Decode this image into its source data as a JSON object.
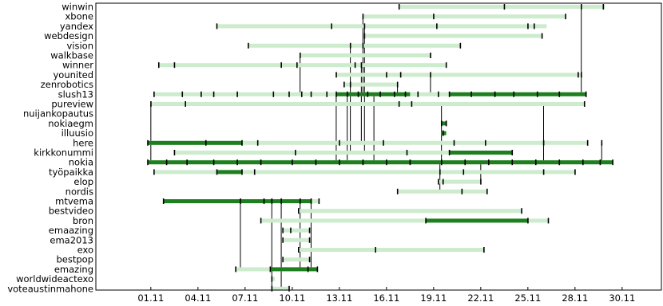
{
  "chart_data": {
    "type": "timeline",
    "title": "",
    "xlabel": "",
    "ylabel": "",
    "x_ticks": [
      "01.11",
      "04.11",
      "07.11",
      "10.11",
      "13.11",
      "16.11",
      "19.11",
      "22.11",
      "25.11",
      "28.11",
      "30.11"
    ],
    "x_tick_days": [
      1,
      4,
      7,
      10,
      13,
      16,
      19,
      22,
      25,
      28,
      31
    ],
    "xlim_days": [
      -2.5,
      33.5
    ],
    "colors": {
      "span": "#cdebcd",
      "active": "#1e7f1e",
      "event": "#000000",
      "link": "#000000"
    },
    "rows": [
      {
        "label": "winwin",
        "span": [
          16.8,
          29.9
        ],
        "active": [],
        "events": [
          16.8,
          23.5,
          28.4,
          29.8
        ]
      },
      {
        "label": "xbone",
        "span": [
          14.5,
          27.4
        ],
        "active": [],
        "events": [
          14.5,
          19.0,
          27.4
        ]
      },
      {
        "label": "yandex",
        "span": [
          5.2,
          26.2
        ],
        "active": [],
        "events": [
          5.2,
          12.5,
          14.6,
          19.2,
          25.0,
          25.4
        ]
      },
      {
        "label": "webdesign",
        "span": [
          14.6,
          25.9
        ],
        "active": [],
        "events": [
          14.6,
          25.9
        ]
      },
      {
        "label": "vision",
        "span": [
          7.2,
          20.7
        ],
        "active": [],
        "events": [
          7.2,
          13.7,
          14.5,
          20.7
        ]
      },
      {
        "label": "walkbase",
        "span": [
          10.5,
          18.8
        ],
        "active": [],
        "events": [
          10.5,
          18.8
        ]
      },
      {
        "label": "winner",
        "span": [
          1.5,
          19.8
        ],
        "active": [],
        "events": [
          1.5,
          2.5,
          9.3,
          10.3,
          14.0,
          14.4,
          19.8
        ]
      },
      {
        "label": "younited",
        "span": [
          12.8,
          28.4
        ],
        "active": [],
        "events": [
          12.8,
          16.0,
          16.9,
          18.8,
          28.2,
          28.4
        ]
      },
      {
        "label": "zenrobotics",
        "span": [
          13.3,
          16.7
        ],
        "active": [],
        "events": [
          13.3,
          13.7,
          16.7
        ]
      },
      {
        "label": "slush13",
        "span": [
          1.2,
          28.7
        ],
        "active": [
          [
            12.8,
            17.5
          ],
          [
            20.0,
            28.7
          ]
        ],
        "events": [
          1.2,
          3.0,
          4.2,
          5.0,
          6.5,
          8.8,
          9.8,
          10.6,
          11.2,
          12.2,
          12.8,
          13.5,
          14.2,
          14.8,
          15.6,
          16.5,
          17.2,
          18.0,
          19.3,
          20.0,
          21.4,
          22.9,
          24.1,
          25.6,
          27.0,
          28.7
        ]
      },
      {
        "label": "pureview",
        "span": [
          1.0,
          28.6
        ],
        "active": [],
        "events": [
          1.0,
          3.2,
          16.8,
          17.6,
          28.6
        ]
      },
      {
        "label": "nuijankopautus",
        "span": [],
        "active": [],
        "events": []
      },
      {
        "label": "nokiaegm",
        "span": [
          19.5,
          19.8
        ],
        "active": [
          [
            19.5,
            19.8
          ]
        ],
        "events": [
          19.5,
          19.8
        ]
      },
      {
        "label": "illuusio",
        "span": [
          19.5,
          19.8
        ],
        "active": [
          [
            19.5,
            19.8
          ]
        ],
        "events": [
          19.6
        ]
      },
      {
        "label": "here",
        "span": [
          0.8,
          28.8
        ],
        "active": [
          [
            0.8,
            6.8
          ]
        ],
        "events": [
          0.8,
          4.5,
          6.8,
          7.8,
          13.0,
          15.8,
          20.3,
          22.3,
          26.0,
          28.8,
          29.7
        ]
      },
      {
        "label": "kirkkonummi",
        "span": [
          2.5,
          24.0
        ],
        "active": [
          [
            20.0,
            24.0
          ]
        ],
        "events": [
          2.5,
          10.2,
          17.3,
          20.0,
          24.0
        ]
      },
      {
        "label": "nokia",
        "span": [
          0.8,
          30.4
        ],
        "active": [
          [
            0.8,
            30.4
          ]
        ],
        "events": [
          0.8,
          2.0,
          3.3,
          5.0,
          6.5,
          8.0,
          10.0,
          11.5,
          13.0,
          14.5,
          16.0,
          17.5,
          19.5,
          21.0,
          22.5,
          24.0,
          25.5,
          27.0,
          28.5,
          29.6,
          30.4
        ]
      },
      {
        "label": "työpaikka",
        "span": [
          1.2,
          28.0
        ],
        "active": [
          [
            5.2,
            6.8
          ]
        ],
        "events": [
          1.2,
          5.2,
          6.8,
          7.6,
          19.4,
          20.9,
          26.0,
          28.0
        ]
      },
      {
        "label": "elop",
        "span": [
          19.3,
          22.0
        ],
        "active": [],
        "events": [
          19.3,
          19.6,
          22.0
        ]
      },
      {
        "label": "nordis",
        "span": [
          16.7,
          22.4
        ],
        "active": [],
        "events": [
          16.7,
          20.8,
          22.4
        ]
      },
      {
        "label": "mtvema",
        "span": [
          1.8,
          11.7
        ],
        "active": [
          [
            1.8,
            11.2
          ]
        ],
        "events": [
          1.8,
          6.7,
          8.2,
          8.7,
          9.3,
          10.5,
          11.2,
          11.7
        ]
      },
      {
        "label": "bestvideo",
        "span": [
          10.4,
          24.6
        ],
        "active": [],
        "events": [
          10.4,
          24.6
        ]
      },
      {
        "label": "bron",
        "span": [
          8.0,
          26.3
        ],
        "active": [
          [
            18.5,
            25.0
          ]
        ],
        "events": [
          8.0,
          18.5,
          25.0,
          26.3
        ]
      },
      {
        "label": "emaazing",
        "span": [
          9.4,
          11.1
        ],
        "active": [],
        "events": [
          9.4,
          9.9,
          11.1
        ]
      },
      {
        "label": "ema2013",
        "span": [
          9.4,
          11.1
        ],
        "active": [],
        "events": [
          9.4,
          11.1
        ]
      },
      {
        "label": "exo",
        "span": [
          10.4,
          22.2
        ],
        "active": [],
        "events": [
          10.4,
          15.3,
          22.2
        ]
      },
      {
        "label": "bestpop",
        "span": [
          9.4,
          11.1
        ],
        "active": [],
        "events": [
          9.4,
          11.1
        ]
      },
      {
        "label": "emazing",
        "span": [
          6.4,
          11.6
        ],
        "active": [
          [
            8.6,
            11.6
          ]
        ],
        "events": [
          6.4,
          8.6,
          11.0,
          11.6
        ]
      },
      {
        "label": "worldwideactexo",
        "span": [
          8.7,
          8.9
        ],
        "active": [],
        "events": [
          8.7
        ]
      },
      {
        "label": "voteaustinmahone",
        "span": [
          8.7,
          9.8
        ],
        "active": [],
        "events": [
          8.7,
          9.8
        ]
      }
    ],
    "links": [
      {
        "day": 28.4,
        "from": "winwin",
        "to": "slush13"
      },
      {
        "day": 14.5,
        "from": "xbone",
        "to": "slush13"
      },
      {
        "day": 14.6,
        "from": "yandex",
        "to": "kirkkonummi"
      },
      {
        "day": 13.7,
        "from": "vision",
        "to": "kirkkonummi"
      },
      {
        "day": 10.5,
        "from": "walkbase",
        "to": "slush13"
      },
      {
        "day": 14.4,
        "from": "winner",
        "to": "here"
      },
      {
        "day": 18.8,
        "from": "younited",
        "to": "slush13"
      },
      {
        "day": 16.7,
        "from": "zenrobotics",
        "to": "slush13"
      },
      {
        "day": 12.8,
        "from": "slush13",
        "to": "nokia"
      },
      {
        "day": 13.5,
        "from": "slush13",
        "to": "nokia"
      },
      {
        "day": 15.2,
        "from": "slush13",
        "to": "nokia"
      },
      {
        "day": 1.0,
        "from": "pureview",
        "to": "nokia"
      },
      {
        "day": 19.5,
        "from": "pureview",
        "to": "nokia"
      },
      {
        "day": 26.0,
        "from": "pureview",
        "to": "nokia"
      },
      {
        "day": 29.7,
        "from": "here",
        "to": "nokia"
      },
      {
        "day": 22.0,
        "from": "nokia",
        "to": "elop"
      },
      {
        "day": 19.4,
        "from": "nokia",
        "to": "nordis"
      },
      {
        "day": 6.7,
        "from": "mtvema",
        "to": "emazing"
      },
      {
        "day": 8.7,
        "from": "mtvema",
        "to": "voteaustinmahone"
      },
      {
        "day": 9.3,
        "from": "mtvema",
        "to": "voteaustinmahone"
      },
      {
        "day": 10.5,
        "from": "mtvema",
        "to": "emazing"
      },
      {
        "day": 11.2,
        "from": "mtvema",
        "to": "emazing"
      }
    ]
  }
}
